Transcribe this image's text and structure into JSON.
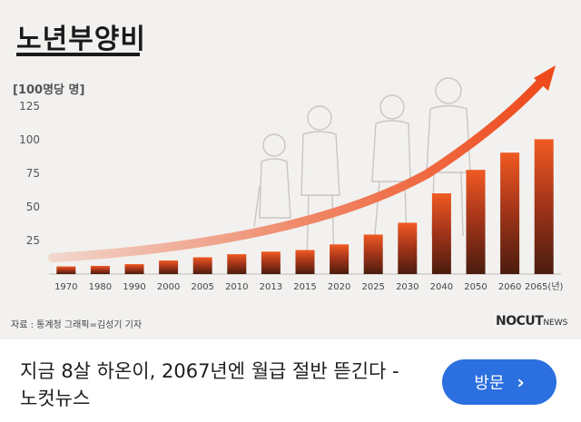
{
  "chart_data": {
    "type": "bar",
    "title": "노년부양비",
    "ylabel": "[100명당 명]",
    "categories": [
      "1970",
      "1980",
      "1990",
      "2000",
      "2005",
      "2010",
      "2013",
      "2015",
      "2020",
      "2025",
      "2030",
      "2040",
      "2050",
      "2060",
      "2065(년)"
    ],
    "values": [
      5.7,
      6.1,
      7.4,
      10.1,
      12.5,
      14.8,
      16.7,
      17.9,
      22.1,
      29.4,
      38.2,
      60.1,
      77.6,
      90.4,
      100.4
    ],
    "ylim": [
      0,
      125
    ],
    "yticks": [
      25,
      50,
      75,
      100,
      125
    ],
    "grid": false,
    "colors": {
      "bar_dark": "#4a1c0e",
      "bar_mid": "#a8361a",
      "bar_light": "#f05a22",
      "arrow": "#ee4b1c"
    }
  },
  "source_note": "자료 : 통계청     그래픽=김성기 기자",
  "brand": {
    "main": "NOCUT",
    "small": "NEWS"
  },
  "link_preview": {
    "title": "지금 8살 하온이, 2067년엔 월급 절반 뜯긴다 - 노컷뉴스",
    "button_label": "방문",
    "button_icon": "chevron-right-icon"
  }
}
